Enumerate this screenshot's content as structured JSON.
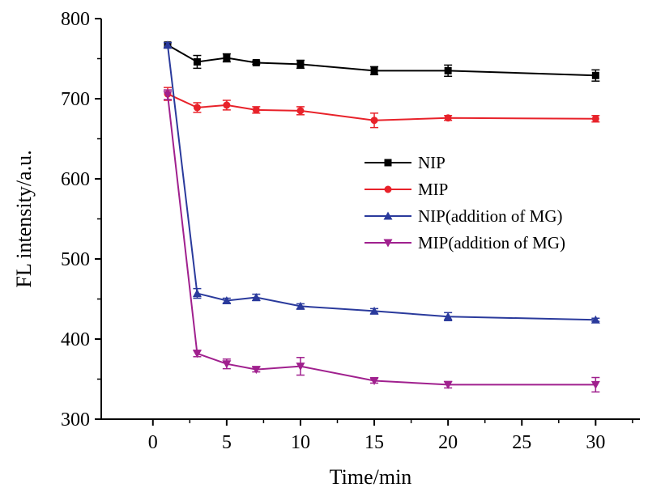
{
  "chart_data": {
    "type": "line",
    "xlabel": "Time/min",
    "ylabel": "FL intensity/a.u.",
    "xlim": [
      -3.5,
      33
    ],
    "ylim": [
      300,
      800
    ],
    "x_ticks": [
      0,
      5,
      10,
      15,
      20,
      25,
      30
    ],
    "y_ticks": [
      300,
      400,
      500,
      600,
      700,
      800
    ],
    "x_tick_labels": [
      "0",
      "5",
      "10",
      "15",
      "20",
      "25",
      "30"
    ],
    "y_tick_labels": [
      "300",
      "400",
      "500",
      "600",
      "700",
      "800"
    ],
    "grid": false,
    "legend_position": "right-center",
    "x": [
      1,
      3,
      5,
      7,
      10,
      15,
      20,
      30
    ],
    "series": [
      {
        "name": "NIP",
        "color": "#000000",
        "marker": "square",
        "values": [
          767,
          746,
          751,
          745,
          743,
          735,
          735,
          729
        ],
        "errors": [
          3,
          8,
          5,
          2,
          5,
          5,
          7,
          7
        ]
      },
      {
        "name": "MIP",
        "color": "#e8222a",
        "marker": "circle",
        "values": [
          706,
          689,
          692,
          686,
          685,
          673,
          676,
          675
        ],
        "errors": [
          8,
          6,
          6,
          4,
          5,
          9,
          3,
          4
        ]
      },
      {
        "name": "NIP(addition of MG)",
        "color": "#2a3a9c",
        "marker": "triangle-up",
        "values": [
          767,
          457,
          448,
          452,
          441,
          435,
          428,
          424
        ],
        "errors": [
          3,
          6,
          3,
          4,
          3,
          3,
          5,
          2
        ]
      },
      {
        "name": "MIP(addition of MG)",
        "color": "#a0208e",
        "marker": "triangle-down",
        "values": [
          705,
          382,
          369,
          362,
          366,
          348,
          343,
          343
        ],
        "errors": [
          6,
          4,
          6,
          3,
          11,
          3,
          4,
          9
        ]
      }
    ]
  }
}
